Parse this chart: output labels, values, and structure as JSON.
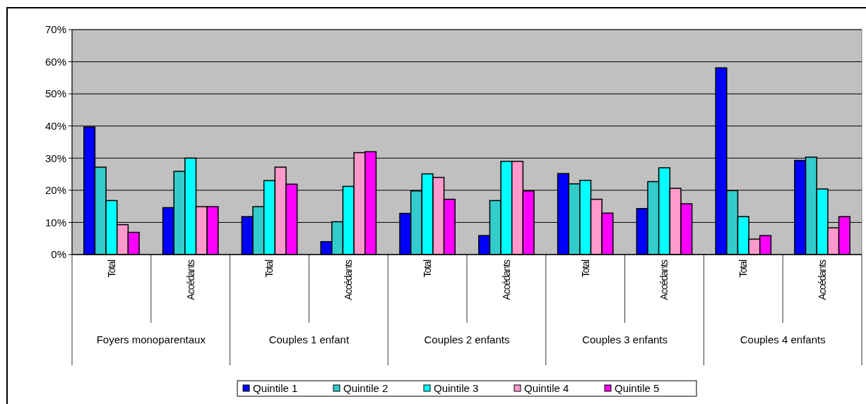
{
  "chart_data": {
    "type": "bar",
    "categories": [
      "Total",
      "Accédants",
      "Total",
      "Accédants",
      "Total",
      "Accédants",
      "Total",
      "Accédants",
      "Total",
      "Accédants"
    ],
    "series": [
      {
        "name": "Quintile 1",
        "color": "#0000ff",
        "values": [
          39.7,
          14.6,
          11.8,
          4.0,
          12.8,
          5.9,
          25.2,
          14.3,
          58.1,
          29.3
        ]
      },
      {
        "name": "Quintile 2",
        "color": "#33cccc",
        "values": [
          27.2,
          25.9,
          14.9,
          10.2,
          19.8,
          16.8,
          22.0,
          22.7,
          19.9,
          30.3
        ]
      },
      {
        "name": "Quintile 3",
        "color": "#00ffff",
        "values": [
          16.8,
          30.0,
          23.0,
          21.2,
          25.1,
          29.0,
          23.1,
          27.0,
          11.8,
          20.4
        ]
      },
      {
        "name": "Quintile 4",
        "color": "#ff99cc",
        "values": [
          9.3,
          14.9,
          27.2,
          31.7,
          24.0,
          29.0,
          17.2,
          20.6,
          4.8,
          8.3
        ]
      },
      {
        "name": "Quintile 5",
        "color": "#ff00ff",
        "values": [
          6.9,
          14.9,
          21.9,
          32.0,
          17.2,
          19.8,
          12.9,
          15.8,
          5.9,
          11.8
        ]
      }
    ],
    "annotations": [
      "Foyers monoparentaux",
      "Couples 1 enfant",
      "Couples 2 enfants",
      "Couples 3 enfants",
      "Couples 4 enfants"
    ],
    "ylim": [
      0,
      70
    ],
    "yticks": [
      {
        "value": 0,
        "label": "0%"
      },
      {
        "value": 10,
        "label": "10%"
      },
      {
        "value": 20,
        "label": "20%"
      },
      {
        "value": 30,
        "label": "30%"
      },
      {
        "value": 40,
        "label": "40%"
      },
      {
        "value": 50,
        "label": "50%"
      },
      {
        "value": 60,
        "label": "60%"
      },
      {
        "value": 70,
        "label": "70%"
      }
    ],
    "grid": "y",
    "legend": "bottom"
  }
}
